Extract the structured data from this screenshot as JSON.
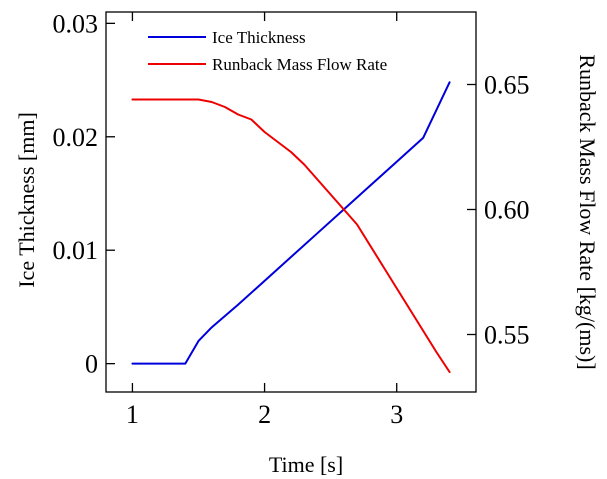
{
  "chart_data": {
    "type": "line",
    "xlabel": "Time [s]",
    "ylabel_left": "Ice Thickness [mm]",
    "ylabel_right": "Runback Mass Flow Rate [kg/(ms)]",
    "xlim": [
      0.8,
      3.6
    ],
    "ylim_left": [
      -0.0025,
      0.031
    ],
    "ylim_right": [
      0.527,
      0.679
    ],
    "x_ticks": [
      1,
      2,
      3
    ],
    "x_tick_labels": [
      "1",
      "2",
      "3"
    ],
    "y_left_ticks": [
      0,
      0.01,
      0.02,
      0.03
    ],
    "y_left_tick_labels": [
      "0",
      "0.01",
      "0.02",
      "0.03"
    ],
    "y_right_ticks": [
      0.55,
      0.6,
      0.65
    ],
    "y_right_tick_labels": [
      "0.55",
      "0.60",
      "0.65"
    ],
    "grid": false,
    "legend_position": "top-left",
    "series": [
      {
        "name": "Ice Thickness",
        "color": "#0000dd",
        "axis": "left",
        "x": [
          1.0,
          1.1,
          1.2,
          1.3,
          1.4,
          1.5,
          1.6,
          1.8,
          2.0,
          2.2,
          2.4,
          2.6,
          2.8,
          3.0,
          3.2,
          3.4
        ],
        "y": [
          0.0,
          0.0,
          0.0,
          0.0,
          0.0,
          0.002,
          0.0032,
          0.0052,
          0.0073,
          0.0094,
          0.0115,
          0.0136,
          0.0157,
          0.0178,
          0.0199,
          0.0248
        ]
      },
      {
        "name": "Runback Mass Flow Rate",
        "color": "#ee0000",
        "axis": "right",
        "x": [
          1.0,
          1.2,
          1.4,
          1.5,
          1.6,
          1.7,
          1.8,
          1.9,
          2.0,
          2.1,
          2.2,
          2.3,
          2.4,
          2.5,
          2.7,
          2.9,
          3.1,
          3.3,
          3.4
        ],
        "y": [
          0.644,
          0.644,
          0.644,
          0.644,
          0.643,
          0.641,
          0.638,
          0.636,
          0.631,
          0.627,
          0.623,
          0.618,
          0.612,
          0.606,
          0.594,
          0.577,
          0.56,
          0.543,
          0.535
        ]
      }
    ]
  }
}
